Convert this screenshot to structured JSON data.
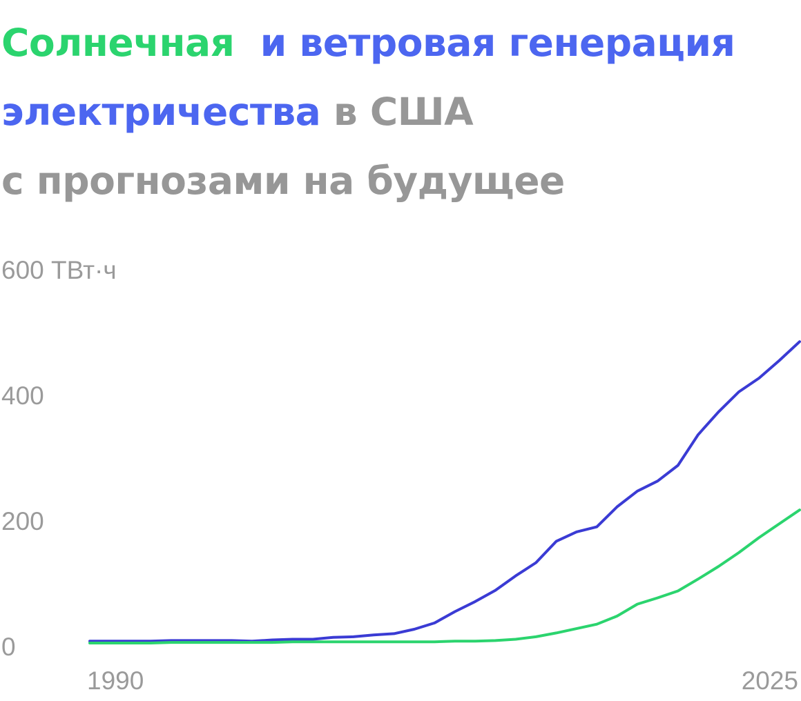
{
  "title": {
    "solar": "Солнечная",
    "wind_1": "и ветровая генерация",
    "wind_2": "электричества",
    "rest_1": "в США",
    "rest_2": "с прогнозами на будущее"
  },
  "colors": {
    "solar": "#2bd46e",
    "wind": "#3a3bd4",
    "title_wind": "#4c66f0",
    "grey": "#979797"
  },
  "chart_data": {
    "type": "line",
    "ylabel": "ТВт·ч",
    "ylim": [
      0,
      600
    ],
    "yticks": [
      {
        "value": 600,
        "label": "600 ТВт·ч"
      },
      {
        "value": 400,
        "label": "400"
      },
      {
        "value": 200,
        "label": "200"
      },
      {
        "value": 0,
        "label": "0"
      }
    ],
    "xlim": [
      1990,
      2025
    ],
    "xticks": [
      {
        "value": 1990,
        "label": "1990"
      },
      {
        "value": 2025,
        "label": "2025"
      }
    ],
    "x": [
      1990,
      1991,
      1992,
      1993,
      1994,
      1995,
      1996,
      1997,
      1998,
      1999,
      2000,
      2001,
      2002,
      2003,
      2004,
      2005,
      2006,
      2007,
      2008,
      2009,
      2010,
      2011,
      2012,
      2013,
      2014,
      2015,
      2016,
      2017,
      2018,
      2019,
      2020,
      2021,
      2022,
      2023,
      2024,
      2025
    ],
    "series": [
      {
        "name": "wind",
        "color": "#3a3bd4",
        "values": [
          3,
          3,
          3,
          3,
          4,
          4,
          4,
          4,
          3,
          5,
          6,
          6,
          9,
          10,
          13,
          15,
          22,
          32,
          50,
          66,
          84,
          107,
          128,
          162,
          177,
          185,
          217,
          242,
          258,
          283,
          332,
          368,
          400,
          422,
          450,
          480
        ]
      },
      {
        "name": "solar",
        "color": "#2bd46e",
        "values": [
          0,
          0,
          0,
          0,
          1,
          1,
          1,
          1,
          1,
          1,
          2,
          2,
          2,
          2,
          2,
          2,
          2,
          2,
          3,
          3,
          4,
          6,
          10,
          16,
          23,
          30,
          43,
          62,
          72,
          83,
          102,
          122,
          144,
          168,
          190,
          212
        ]
      }
    ]
  }
}
